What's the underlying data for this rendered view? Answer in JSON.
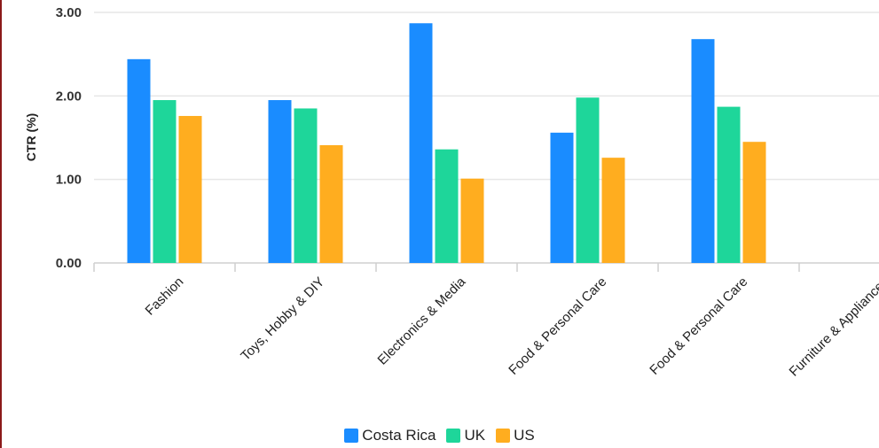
{
  "chart_data": {
    "type": "bar",
    "ylabel": "CTR (%)",
    "ylim": [
      0,
      3
    ],
    "yticks": [
      "0.00",
      "1.00",
      "2.00",
      "3.00"
    ],
    "categories": [
      "Fashion",
      "Toys, Hobby & DIY",
      "Electronics & Media",
      "Food & Personal Care",
      "Food & Personal Care",
      "Furniture & Appliances"
    ],
    "series": [
      {
        "name": "Costa Rica",
        "color": "#1a8cff",
        "values": [
          2.44,
          1.95,
          2.87,
          1.56,
          2.68,
          null
        ]
      },
      {
        "name": "UK",
        "color": "#1ed69a",
        "values": [
          1.95,
          1.85,
          1.36,
          1.98,
          1.87,
          null
        ]
      },
      {
        "name": "US",
        "color": "#ffad1f",
        "values": [
          1.76,
          1.41,
          1.01,
          1.26,
          1.45,
          null
        ]
      }
    ],
    "grid": true,
    "legend_position": "bottom-center"
  }
}
